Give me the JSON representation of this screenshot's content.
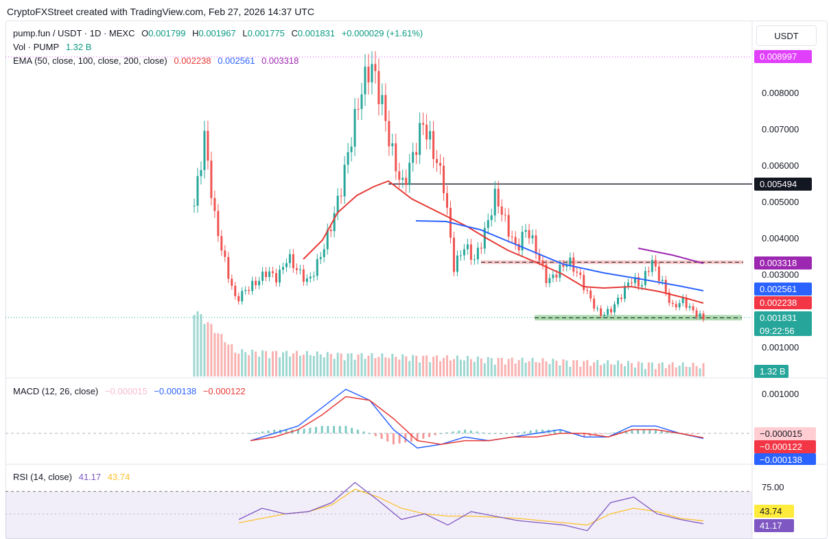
{
  "header": {
    "title": "CryptoFXStreet created with TradingView.com, Feb 27, 2026 14:37 UTC"
  },
  "legend": {
    "symbol": "pump.fun / USDT · 1D · MEXC",
    "o_label": "O",
    "o": "0.001799",
    "h_label": "H",
    "h": "0.001967",
    "l_label": "L",
    "l": "0.001775",
    "c_label": "C",
    "c": "0.001831",
    "change": "+0.000029 (+1.61%)",
    "vol_label": "Vol · PUMP",
    "vol": "1.32 B",
    "ema_label": "EMA (50, close, 100, close, 200, close)",
    "ema50": "0.002238",
    "ema100": "0.002561",
    "ema200": "0.003318",
    "macd_label": "MACD (12, 26, close)",
    "macd_hist": "−0.000015",
    "macd_line": "−0.000138",
    "macd_signal": "−0.000122",
    "rsi_label": "RSI (14, close)",
    "rsi": "41.17",
    "rsi_ma": "43.74"
  },
  "price_axis": {
    "currency": "USDT",
    "ticks": [
      "0.008000",
      "0.007000",
      "0.006000",
      "0.005000",
      "0.004000",
      "0.003000",
      "0.001000"
    ],
    "badges": {
      "high": "0.008997",
      "resistance": "0.005494",
      "ema200": "0.003318",
      "ema100": "0.002561",
      "ema50": "0.002238",
      "last": "0.001831",
      "countdown": "09:22:56",
      "volume": "1.32 B"
    }
  },
  "macd_axis": {
    "ticks": [
      "0.001000"
    ],
    "badges": {
      "hist": "−0.000015",
      "signal": "−0.000122",
      "macd": "−0.000138"
    }
  },
  "rsi_axis": {
    "ticks": [
      "75.00"
    ],
    "badges": {
      "ma": "43.74",
      "rsi": "41.17"
    }
  },
  "colors": {
    "up": "#26a69a",
    "down": "#ef5350",
    "ema50": "#e53935",
    "ema100": "#2962ff",
    "ema200": "#9c27b0",
    "rsi": "#7e57c2",
    "rsi_ma": "#fbc02d",
    "support": "#66bb6a",
    "resistance_zone": "#ef9a9a"
  },
  "chart_data": {
    "type": "candlestick",
    "title": "pump.fun / USDT · 1D · MEXC",
    "ylabel": "USDT",
    "ylim": [
      0,
      0.009
    ],
    "levels": {
      "all_time_high": 0.008997,
      "horizontal_resistance": 0.005494,
      "resistance_zone": [
        0.0033,
        0.0034
      ],
      "support_zone": [
        0.00175,
        0.0019
      ]
    },
    "last": {
      "open": 0.001799,
      "high": 0.001967,
      "low": 0.001775,
      "close": 0.001831,
      "volume": "1.32 B"
    },
    "ema": {
      "ema50": 0.002238,
      "ema100": 0.002561,
      "ema200": 0.003318
    },
    "path": [
      0.0049,
      0.0068,
      0.0045,
      0.0033,
      0.0023,
      0.0026,
      0.0028,
      0.0031,
      0.0029,
      0.0035,
      0.0031,
      0.0028,
      0.0034,
      0.0042,
      0.0052,
      0.0066,
      0.008,
      0.0088,
      0.0078,
      0.0064,
      0.0054,
      0.0062,
      0.0072,
      0.0064,
      0.0055,
      0.0032,
      0.0038,
      0.0034,
      0.0042,
      0.0052,
      0.0044,
      0.0037,
      0.0043,
      0.0036,
      0.0028,
      0.0031,
      0.0034,
      0.003,
      0.0024,
      0.0019,
      0.002,
      0.0024,
      0.0029,
      0.0027,
      0.0034,
      0.0028,
      0.0021,
      0.0023,
      0.002,
      0.0018
    ],
    "macd": {
      "macd_line": [
        -0.0002,
        0.0,
        0.0002,
        0.0007,
        0.0012,
        0.0009,
        0.0001,
        -0.0004,
        -0.0003,
        -0.0001,
        -0.0002,
        -0.0001,
        0.0,
        0.0001,
        -0.0001,
        -0.0001,
        0.0002,
        0.0002,
        0.0,
        -0.00014
      ],
      "signal": [
        -0.0002,
        -0.0001,
        0.0001,
        0.0005,
        0.001,
        0.0009,
        0.0004,
        -0.0002,
        -0.0003,
        -0.0002,
        -0.0002,
        -0.0001,
        -0.0001,
        0.0,
        0.0,
        -0.0001,
        0.0001,
        0.0001,
        0.0,
        -0.00012
      ],
      "ylim": [
        -0.0006,
        0.0014
      ]
    },
    "rsi": {
      "rsi": [
        45,
        55,
        50,
        52,
        60,
        78,
        62,
        45,
        50,
        40,
        52,
        48,
        44,
        42,
        40,
        35,
        60,
        65,
        50,
        45,
        41.17
      ],
      "rsi_ma": [
        42,
        46,
        50,
        52,
        58,
        72,
        65,
        55,
        50,
        48,
        48,
        47,
        46,
        44,
        42,
        40,
        50,
        55,
        52,
        46,
        43.74
      ],
      "upper": 70,
      "lower": 30,
      "ylim": [
        30,
        90
      ]
    }
  }
}
